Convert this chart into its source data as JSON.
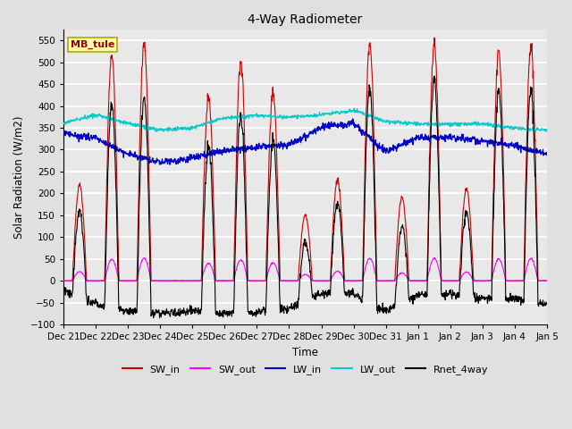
{
  "title": "4-Way Radiometer",
  "xlabel": "Time",
  "ylabel": "Solar Radiation (W/m2)",
  "station_label": "MB_tule",
  "ylim": [
    -100,
    575
  ],
  "yticks": [
    -100,
    -50,
    0,
    50,
    100,
    150,
    200,
    250,
    300,
    350,
    400,
    450,
    500,
    550
  ],
  "x_tick_labels": [
    "Dec 21",
    "Dec 22",
    "Dec 23",
    "Dec 24",
    "Dec 25",
    "Dec 26",
    "Dec 27",
    "Dec 28",
    "Dec 29",
    "Dec 30",
    "Dec 31",
    "Jan 1",
    "Jan 2",
    "Jan 3",
    "Jan 4",
    "Jan 5"
  ],
  "colors": {
    "SW_in": "#cc0000",
    "SW_out": "#ff00ff",
    "LW_in": "#0000cc",
    "LW_out": "#00cccc",
    "Rnet_4way": "#000000"
  },
  "background_color": "#e0e0e0",
  "plot_bg_color": "#e8e8e8",
  "station_box_color": "#ffffaa",
  "station_box_edge": "#aaaa00",
  "station_text_color": "#990000",
  "sw_in_peaks": [
    220,
    515,
    545,
    0,
    420,
    500,
    430,
    150,
    230,
    540,
    190,
    540,
    210,
    525,
    530
  ],
  "lw_in_base_x": [
    0,
    1,
    2,
    3,
    4,
    5,
    6,
    7,
    8,
    9,
    10,
    11,
    12,
    13,
    14,
    15
  ],
  "lw_in_base_y": [
    340,
    325,
    290,
    270,
    280,
    295,
    305,
    310,
    350,
    360,
    295,
    330,
    330,
    320,
    310,
    290
  ],
  "lw_out_base_x": [
    0,
    1,
    2,
    3,
    4,
    5,
    6,
    7,
    8,
    9,
    10,
    11,
    12,
    13,
    14,
    15
  ],
  "lw_out_base_y": [
    360,
    380,
    360,
    345,
    350,
    375,
    380,
    375,
    380,
    390,
    365,
    360,
    360,
    360,
    350,
    345
  ]
}
